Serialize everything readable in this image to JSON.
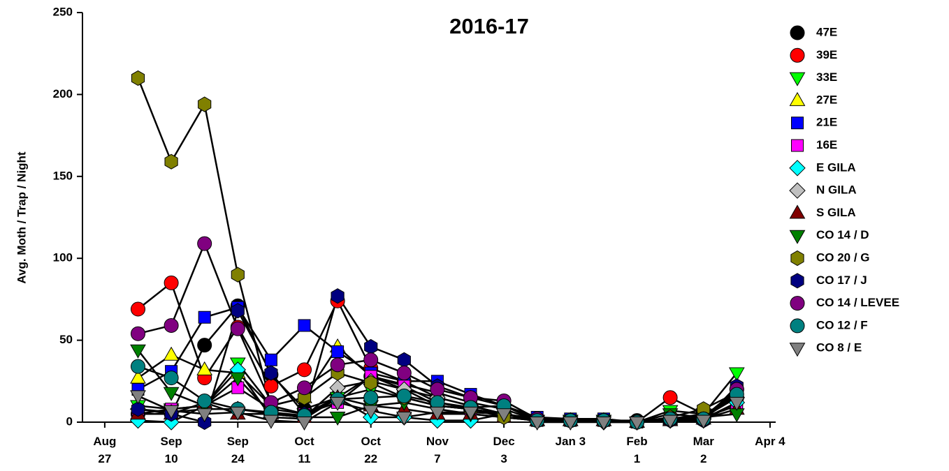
{
  "chart_data": {
    "type": "line",
    "title": "2016-17",
    "ylabel": "Avg. Moth / Trap / Night",
    "x": [
      1,
      2,
      3,
      4,
      5,
      6,
      7,
      8,
      9,
      10,
      11,
      12,
      13,
      14,
      15,
      16,
      17,
      18,
      19
    ],
    "xlim": [
      -0.67,
      20.17
    ],
    "xticks": [
      {
        "value": 0,
        "label": "Aug 27"
      },
      {
        "value": 2,
        "label": "Sep 10"
      },
      {
        "value": 4,
        "label": "Sep 24"
      },
      {
        "value": 6,
        "label": "Oct 11"
      },
      {
        "value": 8,
        "label": "Oct 22"
      },
      {
        "value": 10,
        "label": "Nov 7"
      },
      {
        "value": 12,
        "label": "Dec 3"
      },
      {
        "value": 14,
        "label": "Jan 3"
      },
      {
        "value": 16,
        "label": "Feb 1"
      },
      {
        "value": 18,
        "label": "Mar 2"
      },
      {
        "value": 20,
        "label": "Apr 4"
      }
    ],
    "ylim": [
      0,
      250
    ],
    "yticks": [
      0,
      50,
      100,
      150,
      200,
      250
    ],
    "line_color": "#000000",
    "series": [
      {
        "name": "47E",
        "color": "#000000",
        "marker": "circle",
        "values": [
          5,
          5,
          47,
          71,
          29,
          8,
          15,
          28,
          20,
          10,
          8,
          5,
          2,
          1,
          1,
          1,
          2,
          3,
          20
        ]
      },
      {
        "name": "39E",
        "color": "#ff0000",
        "marker": "circle",
        "values": [
          69,
          85,
          27,
          58,
          22,
          32,
          74,
          33,
          25,
          15,
          10,
          5,
          2,
          1,
          1,
          0,
          15,
          5,
          15
        ]
      },
      {
        "name": "33E",
        "color": "#00ff00",
        "marker": "triangle-down",
        "values": [
          10,
          8,
          10,
          36,
          10,
          5,
          15,
          20,
          15,
          10,
          8,
          5,
          1,
          1,
          1,
          0,
          7,
          5,
          30
        ]
      },
      {
        "name": "27E",
        "color": "#ffff00",
        "marker": "triangle-up",
        "values": [
          27,
          41,
          32,
          30,
          10,
          15,
          46,
          28,
          23,
          18,
          12,
          8,
          1,
          1,
          1,
          0,
          2,
          5,
          15
        ]
      },
      {
        "name": "21E",
        "color": "#0000ff",
        "marker": "square",
        "values": [
          20,
          31,
          64,
          70,
          38,
          59,
          43,
          30,
          25,
          25,
          17,
          10,
          3,
          2,
          2,
          0,
          2,
          3,
          18
        ]
      },
      {
        "name": "16E",
        "color": "#ff00ff",
        "marker": "square",
        "values": [
          5,
          8,
          10,
          21,
          8,
          5,
          12,
          28,
          22,
          12,
          8,
          5,
          1,
          1,
          1,
          0,
          2,
          3,
          10
        ]
      },
      {
        "name": "E GILA",
        "color": "#00ffff",
        "marker": "diamond",
        "values": [
          1,
          0,
          10,
          32,
          3,
          2,
          15,
          3,
          3,
          1,
          1,
          5,
          1,
          1,
          0,
          0,
          1,
          2,
          12
        ]
      },
      {
        "name": "N GILA",
        "color": "#c0c0c0",
        "marker": "diamond",
        "values": [
          8,
          6,
          8,
          8,
          5,
          3,
          21,
          25,
          20,
          15,
          10,
          5,
          1,
          1,
          1,
          0,
          2,
          3,
          15
        ]
      },
      {
        "name": "S GILA",
        "color": "#800000",
        "marker": "triangle-up",
        "values": [
          5,
          5,
          12,
          5,
          5,
          3,
          15,
          10,
          8,
          5,
          5,
          3,
          1,
          1,
          1,
          0,
          1,
          2,
          8
        ]
      },
      {
        "name": "CO 14 / D",
        "color": "#008000",
        "marker": "triangle-down",
        "values": [
          44,
          18,
          10,
          27,
          5,
          3,
          3,
          10,
          12,
          8,
          5,
          3,
          1,
          1,
          1,
          0,
          5,
          3,
          5
        ]
      },
      {
        "name": "CO 20 / G",
        "color": "#808000",
        "marker": "hexagon",
        "values": [
          210,
          159,
          194,
          90,
          10,
          15,
          30,
          24,
          15,
          10,
          8,
          3,
          1,
          1,
          1,
          0,
          3,
          8,
          18
        ]
      },
      {
        "name": "CO 17 / J",
        "color": "#000080",
        "marker": "hexagon",
        "values": [
          8,
          5,
          0,
          68,
          30,
          5,
          77,
          46,
          38,
          22,
          15,
          10,
          2,
          1,
          1,
          0,
          1,
          1,
          22
        ]
      },
      {
        "name": "CO 14 / LEVEE",
        "color": "#800080",
        "marker": "circle",
        "values": [
          54,
          59,
          109,
          57,
          12,
          21,
          35,
          38,
          30,
          20,
          15,
          13,
          2,
          1,
          1,
          0,
          2,
          2,
          20
        ]
      },
      {
        "name": "CO 12 / F",
        "color": "#008080",
        "marker": "circle",
        "values": [
          34,
          27,
          13,
          8,
          6,
          4,
          14,
          15,
          16,
          12,
          9,
          10,
          1,
          1,
          1,
          0,
          2,
          2,
          17
        ]
      },
      {
        "name": "CO 8 / E",
        "color": "#808080",
        "marker": "triangle-down",
        "values": [
          16,
          7,
          5,
          6,
          1,
          0,
          12,
          7,
          3,
          6,
          6,
          5,
          0,
          0,
          0,
          0,
          1,
          1,
          12
        ]
      }
    ]
  }
}
